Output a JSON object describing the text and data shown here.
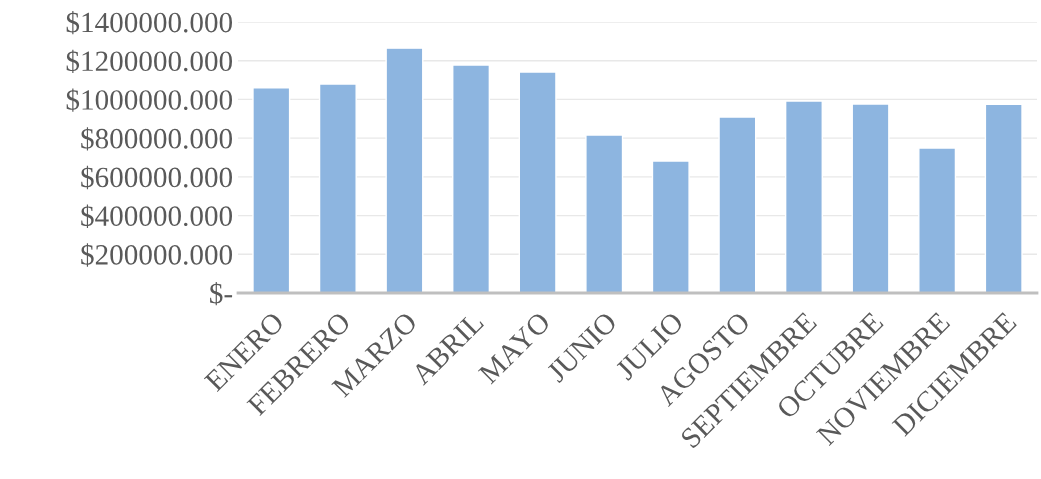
{
  "chart_data": {
    "type": "bar",
    "categories": [
      "ENERO",
      "FEBRERO",
      "MARZO",
      "ABRIL",
      "MAYO",
      "JUNIO",
      "JULIO",
      "AGOSTO",
      "SEPTIEMBRE",
      "OCTUBRE",
      "NOVIEMBRE",
      "DICIEMBRE"
    ],
    "values": [
      1060000,
      1080000,
      1265000,
      1178000,
      1142000,
      816000,
      682000,
      909000,
      992000,
      976000,
      749000,
      975000
    ],
    "color": "#8db5e0",
    "ylim": [
      0,
      1400000
    ],
    "yticks": [
      {
        "value": 0,
        "label": "$-"
      },
      {
        "value": 200000,
        "label": "$200000.000"
      },
      {
        "value": 400000,
        "label": "$400000.000"
      },
      {
        "value": 600000,
        "label": "$600000.000"
      },
      {
        "value": 800000,
        "label": "$800000.000"
      },
      {
        "value": 1000000,
        "label": "$1000000.000"
      },
      {
        "value": 1200000,
        "label": "$1200000.000"
      },
      {
        "value": 1400000,
        "label": "$1400000.000"
      }
    ],
    "grid": "y"
  }
}
